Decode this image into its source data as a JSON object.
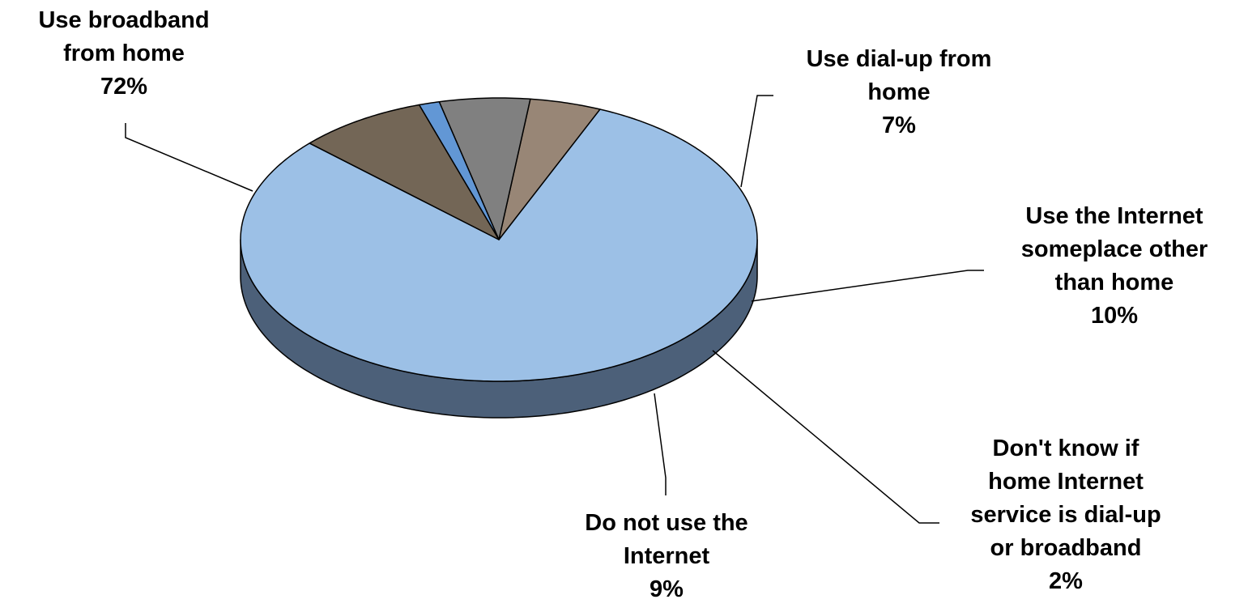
{
  "chart_data": {
    "type": "pie",
    "title": "",
    "legend": "none",
    "slices": [
      {
        "label": [
          "Use broadband",
          "from home"
        ],
        "value": 72,
        "value_label": "72%",
        "color": "#9CC0E6",
        "side_color": "#4C6079"
      },
      {
        "label": [
          "Use dial-up from",
          "home"
        ],
        "value": 7,
        "value_label": "7%",
        "color": "#988676",
        "side_color": "#4C433B"
      },
      {
        "label": [
          "Use the Internet",
          "someplace other",
          "than home"
        ],
        "value": 10,
        "value_label": "10%",
        "color": "#808080",
        "side_color": "#404040"
      },
      {
        "label": [
          "Don't know if",
          "home Internet",
          "service is dial-up",
          "or broadband"
        ],
        "value": 2,
        "value_label": "2%",
        "color": "#6297D5",
        "side_color": "#314B6A"
      },
      {
        "label": [
          "Do not use the",
          "Internet"
        ],
        "value": 9,
        "value_label": "9%",
        "color": "#736656",
        "side_color": "#3A332B"
      }
    ]
  }
}
